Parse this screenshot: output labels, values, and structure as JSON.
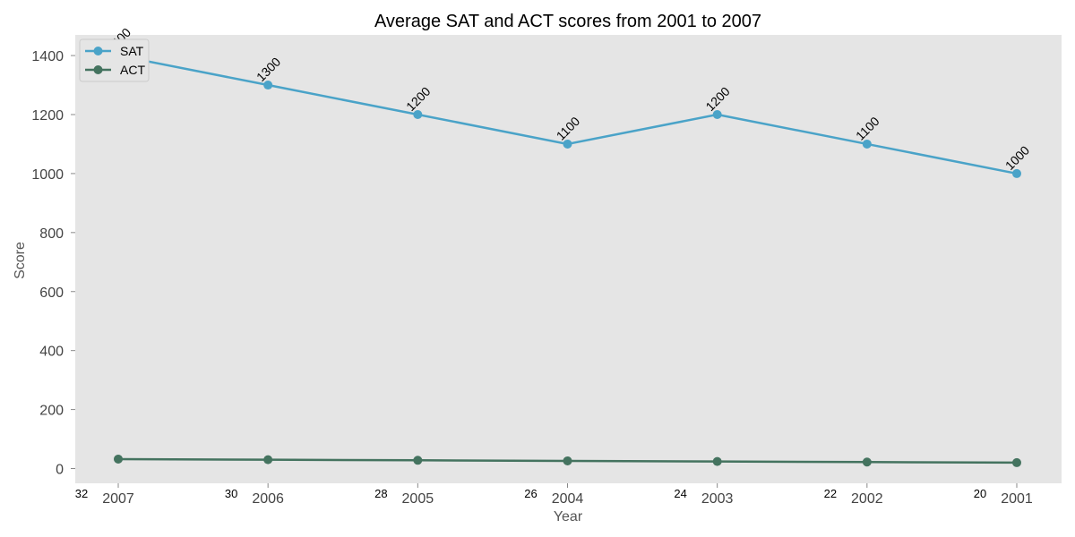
{
  "chart_data": {
    "type": "line",
    "title": "Average SAT and ACT scores from 2001 to 2007",
    "xlabel": "Year",
    "ylabel": "Score",
    "categories": [
      "2007",
      "2006",
      "2005",
      "2004",
      "2003",
      "2002",
      "2001"
    ],
    "series": [
      {
        "name": "SAT",
        "values": [
          1400,
          1300,
          1200,
          1100,
          1200,
          1100,
          1000
        ]
      },
      {
        "name": "ACT",
        "values": [
          32,
          30,
          28,
          26,
          24,
          22,
          20
        ]
      }
    ],
    "ylim": [
      -50,
      1470
    ],
    "yticks": [
      0,
      200,
      400,
      600,
      800,
      1000,
      1200,
      1400
    ],
    "grid": false,
    "legend": "top-left",
    "colors": {
      "SAT": "#4aa3c8",
      "ACT": "#44735f",
      "plot_background": "#e5e5e5"
    }
  }
}
